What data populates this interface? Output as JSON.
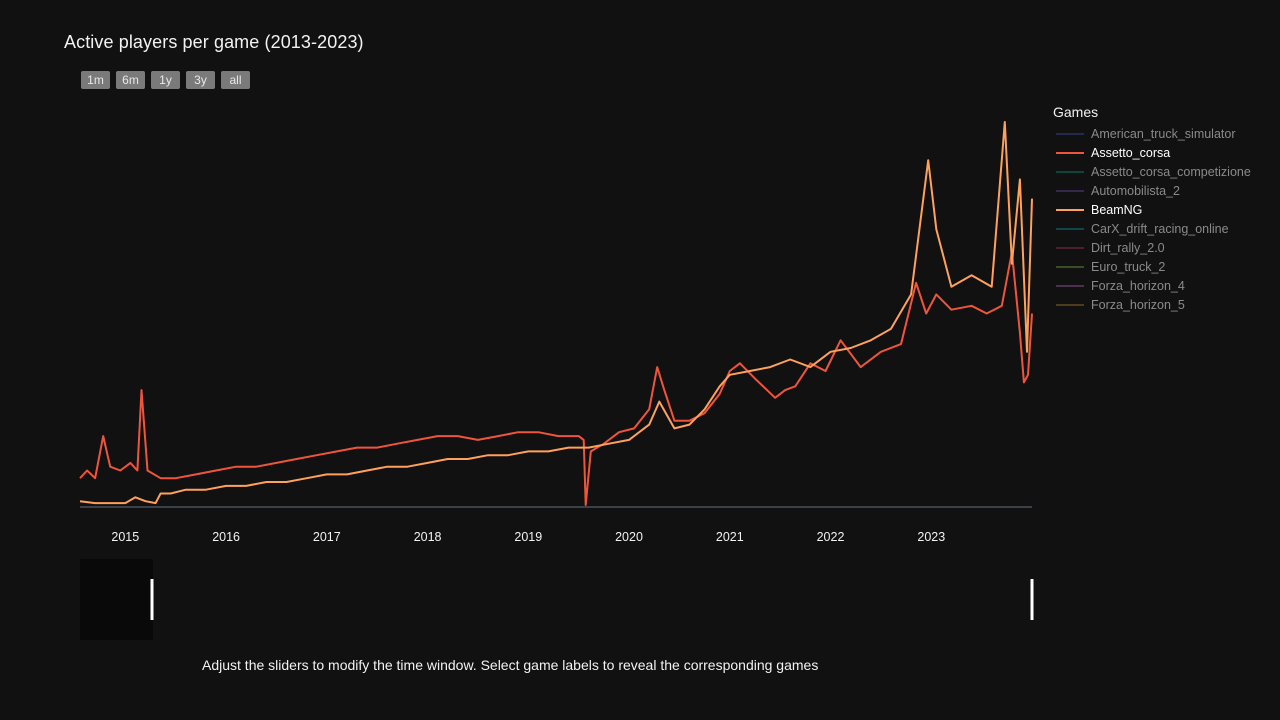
{
  "title": "Active players per game (2013-2023)",
  "range_buttons": [
    "1m",
    "6m",
    "1y",
    "3y",
    "all"
  ],
  "legend": {
    "title": "Games",
    "items": [
      {
        "label": "American_truck_simulator",
        "color": "#3b3f8c",
        "visible": false
      },
      {
        "label": "Assetto_corsa",
        "color": "#EF553B",
        "visible": true
      },
      {
        "label": "Assetto_corsa_competizione",
        "color": "#00805f",
        "visible": false
      },
      {
        "label": "Automobilista_2",
        "color": "#5a3d8c",
        "visible": false
      },
      {
        "label": "BeamNG",
        "color": "#FFA15A",
        "visible": true
      },
      {
        "label": "CarX_drift_racing_online",
        "color": "#137a80",
        "visible": false
      },
      {
        "label": "Dirt_rally_2.0",
        "color": "#8a3248",
        "visible": false
      },
      {
        "label": "Euro_truck_2",
        "color": "#5f8a3c",
        "visible": false
      },
      {
        "label": "Forza_horizon_4",
        "color": "#8a4f8a",
        "visible": false
      },
      {
        "label": "Forza_horizon_5",
        "color": "#8a6a2a",
        "visible": false
      }
    ]
  },
  "caption": "Adjust the sliders to modify the time window. Select game labels to reveal the corresponding games",
  "chart_data": {
    "type": "line",
    "title": "Active players per game (2013-2023)",
    "x_tick_labels": [
      "2015",
      "2016",
      "2017",
      "2018",
      "2019",
      "2020",
      "2021",
      "2022",
      "2023"
    ],
    "xlim": [
      2014.55,
      2024.0
    ],
    "ylim": [
      0,
      1.0
    ],
    "y_axis": "relative active players (no tick labels shown)",
    "grid": false,
    "legend_position": "right",
    "range_slider": true,
    "series": [
      {
        "name": "Assetto_corsa",
        "color": "#EF553B",
        "x": [
          2014.55,
          2014.62,
          2014.7,
          2014.78,
          2014.85,
          2014.95,
          2015.05,
          2015.12,
          2015.16,
          2015.22,
          2015.35,
          2015.5,
          2015.7,
          2015.9,
          2016.1,
          2016.3,
          2016.5,
          2016.7,
          2016.9,
          2017.1,
          2017.3,
          2017.5,
          2017.7,
          2017.9,
          2018.1,
          2018.3,
          2018.5,
          2018.7,
          2018.9,
          2019.1,
          2019.3,
          2019.5,
          2019.55,
          2019.57,
          2019.62,
          2019.75,
          2019.9,
          2020.05,
          2020.2,
          2020.28,
          2020.35,
          2020.45,
          2020.6,
          2020.75,
          2020.9,
          2021.0,
          2021.1,
          2021.25,
          2021.45,
          2021.55,
          2021.65,
          2021.8,
          2021.95,
          2022.1,
          2022.3,
          2022.5,
          2022.7,
          2022.85,
          2022.95,
          2023.05,
          2023.2,
          2023.4,
          2023.55,
          2023.7,
          2023.8,
          2023.88,
          2023.92,
          2023.96,
          2024.0
        ],
        "y": [
          0.07,
          0.09,
          0.07,
          0.18,
          0.1,
          0.09,
          0.11,
          0.09,
          0.3,
          0.09,
          0.07,
          0.07,
          0.08,
          0.09,
          0.1,
          0.1,
          0.11,
          0.12,
          0.13,
          0.14,
          0.15,
          0.15,
          0.16,
          0.17,
          0.18,
          0.18,
          0.17,
          0.18,
          0.19,
          0.19,
          0.18,
          0.18,
          0.17,
          0.0,
          0.14,
          0.16,
          0.19,
          0.2,
          0.25,
          0.36,
          0.3,
          0.22,
          0.22,
          0.24,
          0.29,
          0.35,
          0.37,
          0.33,
          0.28,
          0.3,
          0.31,
          0.37,
          0.35,
          0.43,
          0.36,
          0.4,
          0.42,
          0.58,
          0.5,
          0.55,
          0.51,
          0.52,
          0.5,
          0.52,
          0.66,
          0.45,
          0.32,
          0.34,
          0.5
        ]
      },
      {
        "name": "BeamNG",
        "color": "#FFA15A",
        "x": [
          2014.55,
          2014.7,
          2014.85,
          2015.0,
          2015.1,
          2015.2,
          2015.3,
          2015.35,
          2015.45,
          2015.6,
          2015.8,
          2016.0,
          2016.2,
          2016.4,
          2016.6,
          2016.8,
          2017.0,
          2017.2,
          2017.4,
          2017.6,
          2017.8,
          2018.0,
          2018.2,
          2018.4,
          2018.6,
          2018.8,
          2019.0,
          2019.2,
          2019.4,
          2019.6,
          2019.8,
          2020.0,
          2020.2,
          2020.3,
          2020.45,
          2020.6,
          2020.75,
          2020.9,
          2021.0,
          2021.2,
          2021.4,
          2021.6,
          2021.8,
          2022.0,
          2022.2,
          2022.4,
          2022.6,
          2022.8,
          2022.97,
          2023.05,
          2023.2,
          2023.4,
          2023.6,
          2023.73,
          2023.8,
          2023.88,
          2023.95,
          2024.0
        ],
        "y": [
          0.01,
          0.005,
          0.005,
          0.005,
          0.02,
          0.01,
          0.005,
          0.03,
          0.03,
          0.04,
          0.04,
          0.05,
          0.05,
          0.06,
          0.06,
          0.07,
          0.08,
          0.08,
          0.09,
          0.1,
          0.1,
          0.11,
          0.12,
          0.12,
          0.13,
          0.13,
          0.14,
          0.14,
          0.15,
          0.15,
          0.16,
          0.17,
          0.21,
          0.27,
          0.2,
          0.21,
          0.25,
          0.31,
          0.34,
          0.35,
          0.36,
          0.38,
          0.36,
          0.4,
          0.41,
          0.43,
          0.46,
          0.55,
          0.9,
          0.72,
          0.57,
          0.6,
          0.57,
          1.0,
          0.63,
          0.85,
          0.4,
          0.8
        ]
      }
    ]
  }
}
